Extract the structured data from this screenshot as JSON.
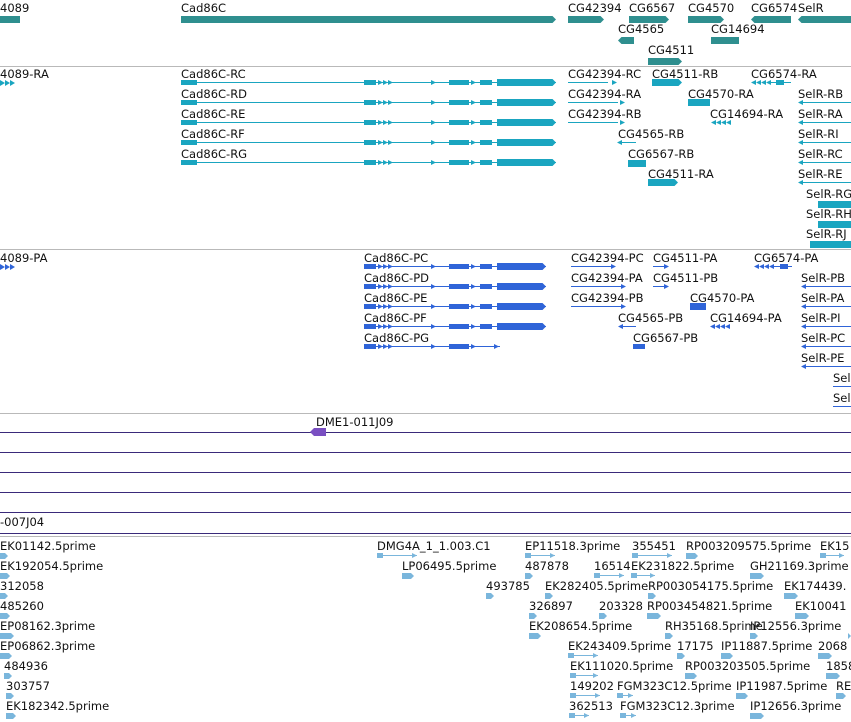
{
  "colors": {
    "gene": "#2f8f8f",
    "transcript": "#1aa5c0",
    "protein": "#2f64d8",
    "clone_line": "#3a2a7a",
    "clone_feature": "#7a4fc2",
    "est": "#7ab6dc",
    "separator": "#b9b9b9",
    "label": "#111111"
  },
  "tracks": {
    "genes": {
      "items": [
        {
          "label": "4089"
        },
        {
          "label": "Cad86C"
        },
        {
          "label": "CG42394"
        },
        {
          "label": "CG6567"
        },
        {
          "label": "CG4570"
        },
        {
          "label": "CG6574"
        },
        {
          "label": "SelR"
        },
        {
          "label": "CG4565"
        },
        {
          "label": "CG14694"
        },
        {
          "label": "CG4511"
        }
      ]
    },
    "transcripts": {
      "items": [
        {
          "label": "4089-RA"
        },
        {
          "label": "Cad86C-RC"
        },
        {
          "label": "Cad86C-RD"
        },
        {
          "label": "Cad86C-RE"
        },
        {
          "label": "Cad86C-RF"
        },
        {
          "label": "Cad86C-RG"
        },
        {
          "label": "CG42394-RC"
        },
        {
          "label": "CG42394-RA"
        },
        {
          "label": "CG42394-RB"
        },
        {
          "label": "CG4511-RB"
        },
        {
          "label": "CG4570-RA"
        },
        {
          "label": "CG14694-RA"
        },
        {
          "label": "CG4565-RB"
        },
        {
          "label": "CG6567-RB"
        },
        {
          "label": "CG4511-RA"
        },
        {
          "label": "CG6574-RA"
        },
        {
          "label": "SelR-RB"
        },
        {
          "label": "SelR-RA"
        },
        {
          "label": "SelR-RI"
        },
        {
          "label": "SelR-RC"
        },
        {
          "label": "SelR-RE"
        },
        {
          "label": "SelR-RG"
        },
        {
          "label": "SelR-RH"
        },
        {
          "label": "SelR-RJ"
        }
      ]
    },
    "proteins": {
      "items": [
        {
          "label": "4089-PA"
        },
        {
          "label": "Cad86C-PC"
        },
        {
          "label": "Cad86C-PD"
        },
        {
          "label": "Cad86C-PE"
        },
        {
          "label": "Cad86C-PF"
        },
        {
          "label": "Cad86C-PG"
        },
        {
          "label": "CG42394-PC"
        },
        {
          "label": "CG42394-PA"
        },
        {
          "label": "CG42394-PB"
        },
        {
          "label": "CG4511-PA"
        },
        {
          "label": "CG4511-PB"
        },
        {
          "label": "CG4570-PA"
        },
        {
          "label": "CG14694-PA"
        },
        {
          "label": "CG4565-PB"
        },
        {
          "label": "CG6567-PB"
        },
        {
          "label": "CG6574-PA"
        },
        {
          "label": "SelR-PB"
        },
        {
          "label": "SelR-PA"
        },
        {
          "label": "SelR-PI"
        },
        {
          "label": "SelR-PC"
        },
        {
          "label": "SelR-PE"
        },
        {
          "label": "Sel"
        },
        {
          "label": "Sel"
        }
      ]
    },
    "clones": {
      "items": [
        {
          "label": "DME1-011J09"
        },
        {
          "label": "-007J04"
        }
      ]
    },
    "ests": {
      "items": [
        {
          "label": "EK01142.5prime"
        },
        {
          "label": "DMG4A_1_1.003.C1"
        },
        {
          "label": "EP11518.3prime"
        },
        {
          "label": "355451"
        },
        {
          "label": "RP003209575.5prime"
        },
        {
          "label": "EK15"
        },
        {
          "label": "EK192054.5prime"
        },
        {
          "label": "LP06495.5prime"
        },
        {
          "label": "487878"
        },
        {
          "label": "16514"
        },
        {
          "label": "EK231822.5prime"
        },
        {
          "label": "GH21169.3prime"
        },
        {
          "label": "312058"
        },
        {
          "label": "493785"
        },
        {
          "label": "EK282405.5prime"
        },
        {
          "label": "RP003054175.5prime"
        },
        {
          "label": "EK174439."
        },
        {
          "label": "485260"
        },
        {
          "label": "326897"
        },
        {
          "label": "203328"
        },
        {
          "label": "RP003454821.5prime"
        },
        {
          "label": "EK10041"
        },
        {
          "label": "EP08162.3prime"
        },
        {
          "label": "EK208654.5prime"
        },
        {
          "label": "RH35168.5prime"
        },
        {
          "label": "IP12556.3prime"
        },
        {
          "label": "EP06862.3prime"
        },
        {
          "label": "EK243409.5prime"
        },
        {
          "label": "17175"
        },
        {
          "label": "IP11887.5prime"
        },
        {
          "label": "2068"
        },
        {
          "label": "484936"
        },
        {
          "label": "EK111020.5prime"
        },
        {
          "label": "RP003203505.5prime"
        },
        {
          "label": "1858"
        },
        {
          "label": "303757"
        },
        {
          "label": "149202"
        },
        {
          "label": "FGM323C12.5prime"
        },
        {
          "label": "IP11987.5prime"
        },
        {
          "label": "RE"
        },
        {
          "label": "EK182342.5prime"
        },
        {
          "label": "362513"
        },
        {
          "label": "FGM323C12.3prime"
        },
        {
          "label": "IP12656.3prime"
        }
      ]
    }
  }
}
